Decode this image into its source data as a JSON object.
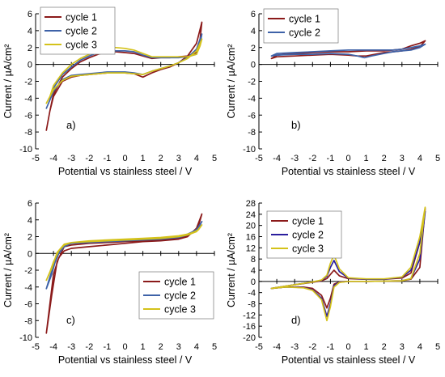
{
  "figure": {
    "panels": [
      {
        "id": "a",
        "panel_label": "a)",
        "xlabel": "Potential vs stainless steel / V",
        "ylabel": "Current / µA/cm²",
        "xlim": [
          -5,
          5
        ],
        "ylim": [
          -10,
          6
        ],
        "xticks": [
          -5,
          -4,
          -3,
          -2,
          -1,
          0,
          1,
          2,
          3,
          4,
          5
        ],
        "yticks": [
          -10,
          -8,
          -6,
          -4,
          -2,
          0,
          2,
          4,
          6
        ],
        "legend_position": "top-left",
        "series": [
          {
            "name": "cycle 1",
            "color": "#8B1A1A",
            "x": [
              -4.4,
              -4.2,
              -4.0,
              -3.5,
              -3.0,
              -2.5,
              -2.0,
              -1.5,
              -1.0,
              -0.5,
              0.0,
              0.5,
              1.0,
              1.5,
              2.0,
              2.5,
              3.0,
              3.5,
              4.0,
              4.3,
              4.2,
              4.0,
              3.5,
              3.0,
              2.5,
              2.0,
              1.5,
              1.0,
              0.5,
              0.0,
              -0.5,
              -1.0,
              -1.5,
              -2.0,
              -2.5,
              -3.0,
              -3.5,
              -4.0,
              -4.2,
              -4.4
            ],
            "y": [
              -7.8,
              -5.5,
              -3.8,
              -2.0,
              -1.5,
              -1.3,
              -1.2,
              -1.1,
              -1.0,
              -1.0,
              -1.0,
              -1.1,
              -1.5,
              -1.0,
              -0.6,
              -0.3,
              0.2,
              1.0,
              2.5,
              5.0,
              3.0,
              1.4,
              1.0,
              0.9,
              0.8,
              0.8,
              0.7,
              1.0,
              1.3,
              1.4,
              1.5,
              1.5,
              1.2,
              0.8,
              0.3,
              -0.5,
              -1.5,
              -3.5,
              -5.5,
              -7.8
            ]
          },
          {
            "name": "cycle 2",
            "color": "#3E62A8",
            "x": [
              -4.4,
              -4.2,
              -4.0,
              -3.5,
              -3.0,
              -2.5,
              -2.0,
              -1.5,
              -1.0,
              -0.5,
              0.0,
              0.5,
              1.0,
              1.5,
              2.0,
              2.5,
              3.0,
              3.5,
              4.0,
              4.3,
              4.2,
              4.0,
              3.5,
              3.0,
              2.5,
              2.0,
              1.5,
              1.0,
              0.5,
              0.0,
              -0.5,
              -1.0,
              -1.5,
              -2.0,
              -2.5,
              -3.0,
              -3.5,
              -4.0,
              -4.2,
              -4.4
            ],
            "y": [
              -5.2,
              -4.2,
              -3.2,
              -1.8,
              -1.3,
              -1.2,
              -1.1,
              -1.0,
              -0.9,
              -0.9,
              -0.9,
              -1.0,
              -1.2,
              -0.8,
              -0.5,
              -0.2,
              0.2,
              0.8,
              1.8,
              3.6,
              2.4,
              1.2,
              0.9,
              0.8,
              0.8,
              0.8,
              0.8,
              1.1,
              1.5,
              1.6,
              1.6,
              1.6,
              1.4,
              1.0,
              0.5,
              -0.3,
              -1.2,
              -2.8,
              -4.2,
              -5.2
            ]
          },
          {
            "name": "cycle 3",
            "color": "#D4C21A",
            "x": [
              -4.4,
              -4.2,
              -4.0,
              -3.5,
              -3.0,
              -2.5,
              -2.0,
              -1.5,
              -1.0,
              -0.5,
              0.0,
              0.5,
              1.0,
              1.5,
              2.0,
              2.5,
              3.0,
              3.5,
              4.0,
              4.3,
              4.2,
              4.0,
              3.5,
              3.0,
              2.5,
              2.0,
              1.5,
              1.0,
              0.5,
              0.0,
              -0.5,
              -1.0,
              -1.5,
              -2.0,
              -2.5,
              -3.0,
              -3.5,
              -4.0,
              -4.2,
              -4.4
            ],
            "y": [
              -4.6,
              -3.8,
              -3.0,
              -1.9,
              -1.4,
              -1.3,
              -1.2,
              -1.1,
              -1.0,
              -1.0,
              -1.0,
              -1.1,
              -1.2,
              -0.8,
              -0.5,
              -0.2,
              0.2,
              0.7,
              1.6,
              3.0,
              2.2,
              1.2,
              0.9,
              0.9,
              0.9,
              0.9,
              0.9,
              1.3,
              1.7,
              1.9,
              2.0,
              2.0,
              1.7,
              1.2,
              0.7,
              0.0,
              -1.0,
              -2.5,
              -3.8,
              -4.6
            ]
          }
        ]
      },
      {
        "id": "b",
        "panel_label": "b)",
        "xlabel": "Potential vs stainless steel / V",
        "ylabel": "Current / µA/cm²",
        "xlim": [
          -5,
          5
        ],
        "ylim": [
          -10,
          6
        ],
        "xticks": [
          -5,
          -4,
          -3,
          -2,
          -1,
          0,
          1,
          2,
          3,
          4,
          5
        ],
        "yticks": [
          -10,
          -8,
          -6,
          -4,
          -2,
          0,
          2,
          4,
          6
        ],
        "legend_position": "top-left",
        "series": [
          {
            "name": "cycle 1",
            "color": "#8B1A1A",
            "x": [
              -4.3,
              -4.0,
              -3.0,
              -2.0,
              -1.0,
              0.0,
              0.5,
              1.0,
              1.5,
              2.0,
              2.5,
              3.0,
              3.5,
              4.0,
              4.3,
              4.0,
              3.5,
              3.0,
              2.5,
              2.0,
              1.0,
              0.0,
              -1.0,
              -2.0,
              -3.0,
              -4.0,
              -4.3
            ],
            "y": [
              0.7,
              0.9,
              1.0,
              1.1,
              1.2,
              1.1,
              1.0,
              1.0,
              1.2,
              1.4,
              1.5,
              1.6,
              1.8,
              2.1,
              2.8,
              2.5,
              2.2,
              1.8,
              1.7,
              1.6,
              1.6,
              1.5,
              1.5,
              1.4,
              1.3,
              1.1,
              0.7
            ]
          },
          {
            "name": "cycle 2",
            "color": "#3E62A8",
            "x": [
              -4.3,
              -4.0,
              -3.0,
              -2.0,
              -1.0,
              0.0,
              0.5,
              0.9,
              1.3,
              2.0,
              2.5,
              3.0,
              3.5,
              4.0,
              4.3,
              4.0,
              3.5,
              3.0,
              2.5,
              2.0,
              1.0,
              0.0,
              -1.0,
              -2.0,
              -3.0,
              -4.0,
              -4.3
            ],
            "y": [
              1.0,
              1.1,
              1.2,
              1.2,
              1.3,
              1.2,
              1.0,
              0.8,
              1.0,
              1.3,
              1.5,
              1.6,
              1.7,
              2.0,
              2.4,
              2.2,
              2.0,
              1.8,
              1.7,
              1.7,
              1.7,
              1.7,
              1.6,
              1.5,
              1.4,
              1.3,
              1.0
            ]
          }
        ]
      },
      {
        "id": "c",
        "panel_label": "c)",
        "xlabel": "Potential vs stainless steel / V",
        "ylabel": "Current / µA/cm²",
        "xlim": [
          -5,
          5
        ],
        "ylim": [
          -10,
          6
        ],
        "xticks": [
          -5,
          -4,
          -3,
          -2,
          -1,
          0,
          1,
          2,
          3,
          4,
          5
        ],
        "yticks": [
          -10,
          -8,
          -6,
          -4,
          -2,
          0,
          2,
          4,
          6
        ],
        "legend_position": "bottom-right",
        "series": [
          {
            "name": "cycle 1",
            "color": "#8B1A1A",
            "x": [
              -4.4,
              -4.2,
              -4.0,
              -3.7,
              -3.4,
              -3.0,
              -2.0,
              -1.0,
              0.0,
              1.0,
              2.0,
              3.0,
              3.5,
              4.0,
              4.3,
              4.1,
              3.8,
              3.5,
              3.0,
              2.0,
              1.0,
              0.0,
              -1.0,
              -2.0,
              -3.0,
              -3.4,
              -3.8,
              -4.1,
              -4.4
            ],
            "y": [
              -9.5,
              -6.0,
              -2.5,
              -0.5,
              0.3,
              0.6,
              0.8,
              1.0,
              1.2,
              1.4,
              1.5,
              1.7,
              2.0,
              3.0,
              4.7,
              3.2,
              2.5,
              2.1,
              1.8,
              1.6,
              1.5,
              1.4,
              1.3,
              1.2,
              1.0,
              0.8,
              -1.0,
              -5.0,
              -9.5
            ]
          },
          {
            "name": "cycle 2",
            "color": "#3E62A8",
            "x": [
              -4.4,
              -4.2,
              -4.0,
              -3.7,
              -3.4,
              -3.0,
              -2.0,
              -1.0,
              0.0,
              1.0,
              2.0,
              3.0,
              3.5,
              4.0,
              4.3,
              4.1,
              3.8,
              3.5,
              3.0,
              2.0,
              1.0,
              0.0,
              -1.0,
              -2.0,
              -3.0,
              -3.4,
              -3.8,
              -4.1,
              -4.4
            ],
            "y": [
              -4.2,
              -2.8,
              -1.5,
              0.0,
              0.8,
              1.2,
              1.3,
              1.4,
              1.5,
              1.6,
              1.7,
              1.9,
              2.2,
              2.8,
              3.8,
              3.0,
              2.6,
              2.3,
              2.0,
              1.8,
              1.7,
              1.6,
              1.5,
              1.4,
              1.2,
              1.0,
              -0.2,
              -2.5,
              -4.2
            ]
          },
          {
            "name": "cycle 3",
            "color": "#D4C21A",
            "x": [
              -4.4,
              -4.2,
              -4.0,
              -3.7,
              -3.4,
              -3.0,
              -2.0,
              -1.0,
              0.0,
              1.0,
              2.0,
              3.0,
              3.5,
              4.0,
              4.3,
              4.1,
              3.8,
              3.5,
              3.0,
              2.0,
              1.0,
              0.0,
              -1.0,
              -2.0,
              -3.0,
              -3.4,
              -3.8,
              -4.1,
              -4.4
            ],
            "y": [
              -3.2,
              -2.2,
              -1.0,
              0.3,
              1.0,
              1.3,
              1.4,
              1.5,
              1.6,
              1.7,
              1.8,
              2.0,
              2.2,
              2.6,
              3.4,
              2.8,
              2.5,
              2.3,
              2.1,
              1.9,
              1.8,
              1.7,
              1.6,
              1.5,
              1.3,
              1.1,
              0.1,
              -1.8,
              -3.2
            ]
          }
        ]
      },
      {
        "id": "d",
        "panel_label": "d)",
        "xlabel": "Potential vs stainless steel / V",
        "ylabel": "Current / µA/cm²",
        "xlim": [
          -5,
          5
        ],
        "ylim": [
          -20,
          28
        ],
        "xticks": [
          -5,
          -4,
          -3,
          -2,
          -1,
          0,
          1,
          2,
          3,
          4,
          5
        ],
        "yticks": [
          -20,
          -16,
          -12,
          -8,
          -4,
          0,
          4,
          8,
          12,
          16,
          20,
          24,
          28
        ],
        "legend_position": "top-left",
        "series": [
          {
            "name": "cycle 1",
            "color": "#8B1A1A",
            "x": [
              -4.3,
              -3.5,
              -2.5,
              -2.0,
              -1.5,
              -1.2,
              -1.0,
              -0.8,
              -0.5,
              0.0,
              1.0,
              2.0,
              3.0,
              3.5,
              4.0,
              4.3,
              4.0,
              3.5,
              3.0,
              2.0,
              1.0,
              0.0,
              -0.5,
              -0.8,
              -1.0,
              -1.2,
              -1.5,
              -2.0,
              -3.0,
              -4.3
            ],
            "y": [
              -2.5,
              -2.0,
              -2.0,
              -2.5,
              -5.0,
              -9.5,
              -6.0,
              -1.0,
              -0.2,
              0.0,
              0.0,
              0.1,
              0.2,
              0.8,
              5.0,
              26.0,
              14.0,
              3.0,
              1.2,
              0.8,
              0.8,
              1.0,
              2.0,
              4.0,
              2.5,
              1.0,
              0.2,
              -0.3,
              -1.2,
              -2.5
            ]
          },
          {
            "name": "cycle 2",
            "color": "#2A1E9E",
            "x": [
              -4.3,
              -3.5,
              -2.5,
              -2.0,
              -1.5,
              -1.2,
              -1.0,
              -0.8,
              -0.5,
              0.0,
              1.0,
              2.0,
              3.0,
              3.5,
              4.0,
              4.3,
              4.0,
              3.5,
              3.0,
              2.0,
              1.0,
              0.0,
              -0.5,
              -0.8,
              -1.0,
              -1.2,
              -1.5,
              -2.0,
              -3.0,
              -4.3
            ],
            "y": [
              -2.5,
              -2.0,
              -2.2,
              -3.0,
              -6.0,
              -12.5,
              -8.0,
              -1.5,
              -0.3,
              0.0,
              0.0,
              0.1,
              0.2,
              1.0,
              8.0,
              25.0,
              14.0,
              4.0,
              1.5,
              0.8,
              0.8,
              1.2,
              3.5,
              7.5,
              5.0,
              1.8,
              0.4,
              -0.2,
              -1.2,
              -2.5
            ]
          },
          {
            "name": "cycle 3",
            "color": "#D4C21A",
            "x": [
              -4.3,
              -3.5,
              -2.5,
              -2.0,
              -1.5,
              -1.2,
              -1.0,
              -0.8,
              -0.5,
              0.0,
              1.0,
              2.0,
              3.0,
              3.5,
              4.0,
              4.3,
              4.0,
              3.5,
              3.0,
              2.0,
              1.0,
              0.0,
              -0.5,
              -0.8,
              -1.0,
              -1.2,
              -1.5,
              -2.0,
              -3.0,
              -4.3
            ],
            "y": [
              -2.5,
              -2.0,
              -2.3,
              -3.2,
              -6.5,
              -14.0,
              -9.0,
              -2.0,
              -0.4,
              0.0,
              0.0,
              0.1,
              0.2,
              1.0,
              10.0,
              26.5,
              16.0,
              5.0,
              1.6,
              0.9,
              0.9,
              1.3,
              4.5,
              9.5,
              6.5,
              2.2,
              0.5,
              -0.2,
              -1.2,
              -2.5
            ]
          }
        ]
      }
    ]
  },
  "chart_data": [
    {
      "type": "line",
      "panel": "a)",
      "xlabel": "Potential vs stainless steel / V",
      "ylabel": "Current / µA/cm²",
      "xlim": [
        -5,
        5
      ],
      "ylim": [
        -10,
        6
      ],
      "legend": [
        "cycle 1",
        "cycle 2",
        "cycle 3"
      ]
    },
    {
      "type": "line",
      "panel": "b)",
      "xlabel": "Potential vs stainless steel / V",
      "ylabel": "Current / µA/cm²",
      "xlim": [
        -5,
        5
      ],
      "ylim": [
        -10,
        6
      ],
      "legend": [
        "cycle 1",
        "cycle 2"
      ]
    },
    {
      "type": "line",
      "panel": "c)",
      "xlabel": "Potential vs stainless steel / V",
      "ylabel": "Current / µA/cm²",
      "xlim": [
        -5,
        5
      ],
      "ylim": [
        -10,
        6
      ],
      "legend": [
        "cycle 1",
        "cycle 2",
        "cycle 3"
      ]
    },
    {
      "type": "line",
      "panel": "d)",
      "xlabel": "Potential vs stainless steel / V",
      "ylabel": "Current / µA/cm²",
      "xlim": [
        -5,
        5
      ],
      "ylim": [
        -20,
        28
      ],
      "legend": [
        "cycle 1",
        "cycle 2",
        "cycle 3"
      ]
    }
  ]
}
